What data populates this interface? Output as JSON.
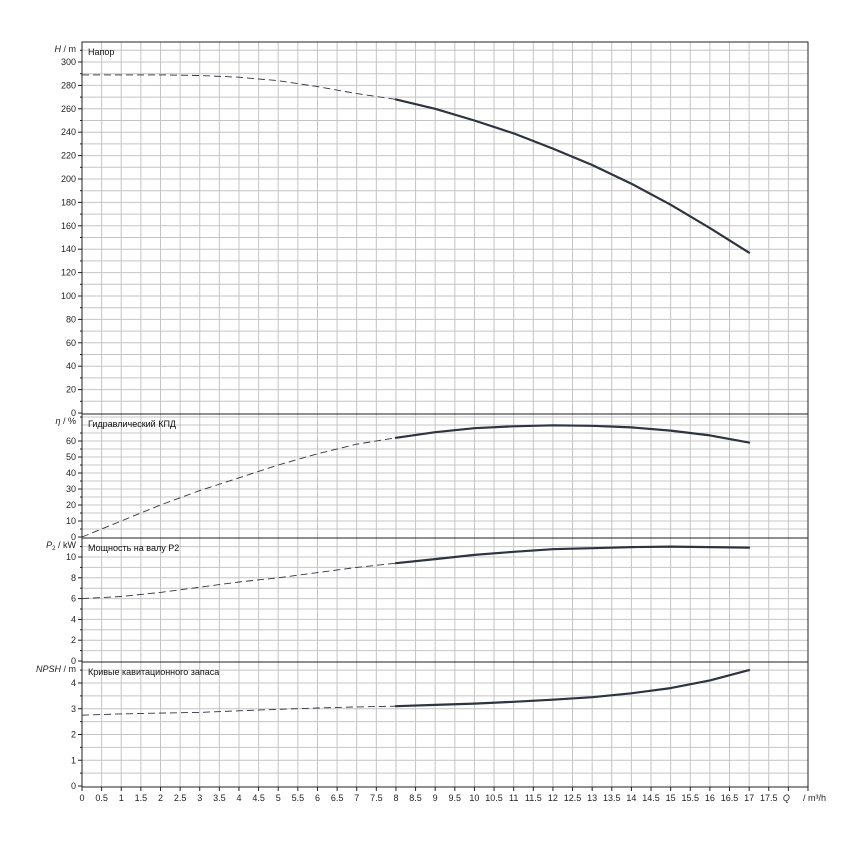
{
  "chart_data": [
    {
      "type": "line",
      "title": "Напор",
      "ylabel": {
        "symbol": "H",
        "sub": "",
        "unit": "m"
      },
      "ylim": [
        0,
        300
      ],
      "yticks": [
        0,
        20,
        40,
        60,
        80,
        100,
        120,
        140,
        160,
        180,
        200,
        220,
        240,
        260,
        280,
        300
      ],
      "solid_from": 8,
      "series": [
        {
          "x": [
            0,
            1,
            2,
            3,
            4,
            5,
            6,
            7,
            8,
            9,
            10,
            11,
            12,
            13,
            14,
            15,
            16,
            17
          ],
          "y": [
            289,
            289,
            289,
            288.5,
            287,
            284,
            279,
            273,
            268,
            260,
            250,
            239,
            226,
            212,
            196,
            178,
            158,
            137
          ]
        }
      ]
    },
    {
      "type": "line",
      "title": "Гидравлический КПД",
      "ylabel": {
        "symbol": "η",
        "sub": "",
        "unit": "%"
      },
      "ylim": [
        0,
        70
      ],
      "yticks": [
        0,
        10,
        20,
        30,
        40,
        50,
        60
      ],
      "solid_from": 8,
      "series": [
        {
          "x": [
            0,
            1,
            2,
            3,
            4,
            5,
            6,
            7,
            8,
            9,
            10,
            11,
            12,
            13,
            14,
            15,
            16,
            17
          ],
          "y": [
            0,
            10,
            20,
            29,
            37,
            45,
            52,
            58,
            62,
            65.5,
            68,
            69.2,
            69.8,
            69.5,
            68.5,
            66.5,
            63.5,
            59
          ]
        }
      ]
    },
    {
      "type": "line",
      "title": "Мощность на валу P2",
      "ylabel": {
        "symbol": "P",
        "sub": "2",
        "unit": "kW"
      },
      "ylim": [
        0,
        12
      ],
      "yticks": [
        0,
        2,
        4,
        6,
        8,
        10
      ],
      "solid_from": 8,
      "series": [
        {
          "x": [
            0,
            1,
            2,
            3,
            4,
            5,
            6,
            7,
            8,
            9,
            10,
            11,
            12,
            13,
            14,
            15,
            16,
            17
          ],
          "y": [
            6.0,
            6.2,
            6.6,
            7.1,
            7.6,
            8.0,
            8.5,
            9.0,
            9.4,
            9.8,
            10.2,
            10.5,
            10.75,
            10.85,
            10.95,
            11.0,
            10.95,
            10.9
          ]
        }
      ]
    },
    {
      "type": "line",
      "title": "Кривые кавитационного запаса",
      "ylabel": {
        "symbol": "NPSH",
        "sub": "",
        "unit": "m"
      },
      "ylim": [
        0,
        4.8
      ],
      "yticks": [
        0,
        1,
        2,
        3,
        4
      ],
      "solid_from": 8,
      "series": [
        {
          "x": [
            0,
            1,
            2,
            3,
            4,
            5,
            6,
            7,
            8,
            9,
            10,
            11,
            12,
            13,
            14,
            15,
            16,
            17
          ],
          "y": [
            2.75,
            2.8,
            2.83,
            2.86,
            2.92,
            2.98,
            3.03,
            3.07,
            3.1,
            3.15,
            3.2,
            3.27,
            3.35,
            3.45,
            3.6,
            3.8,
            4.1,
            4.5
          ]
        }
      ]
    }
  ],
  "x_axis": {
    "min": 0,
    "max": 18.5,
    "step": 0.5,
    "labels": [
      "0",
      "0.5",
      "1",
      "1.5",
      "2",
      "2.5",
      "3",
      "3.5",
      "4",
      "4.5",
      "5",
      "5.5",
      "6",
      "6.5",
      "7",
      "7.5",
      "8",
      "8.5",
      "9",
      "9.5",
      "10",
      "10.5",
      "11",
      "11.5",
      "12",
      "12.5",
      "13",
      "13.5",
      "14",
      "14.5",
      "15",
      "15.5",
      "16",
      "16.5",
      "17",
      "17.5",
      "Q",
      "/ m³/h"
    ],
    "q_label": "Q",
    "unit_label": "/ m³/h"
  },
  "colors": {
    "curve": "#2e3440",
    "grid": "#c4c4c4",
    "frame": "#222222"
  }
}
